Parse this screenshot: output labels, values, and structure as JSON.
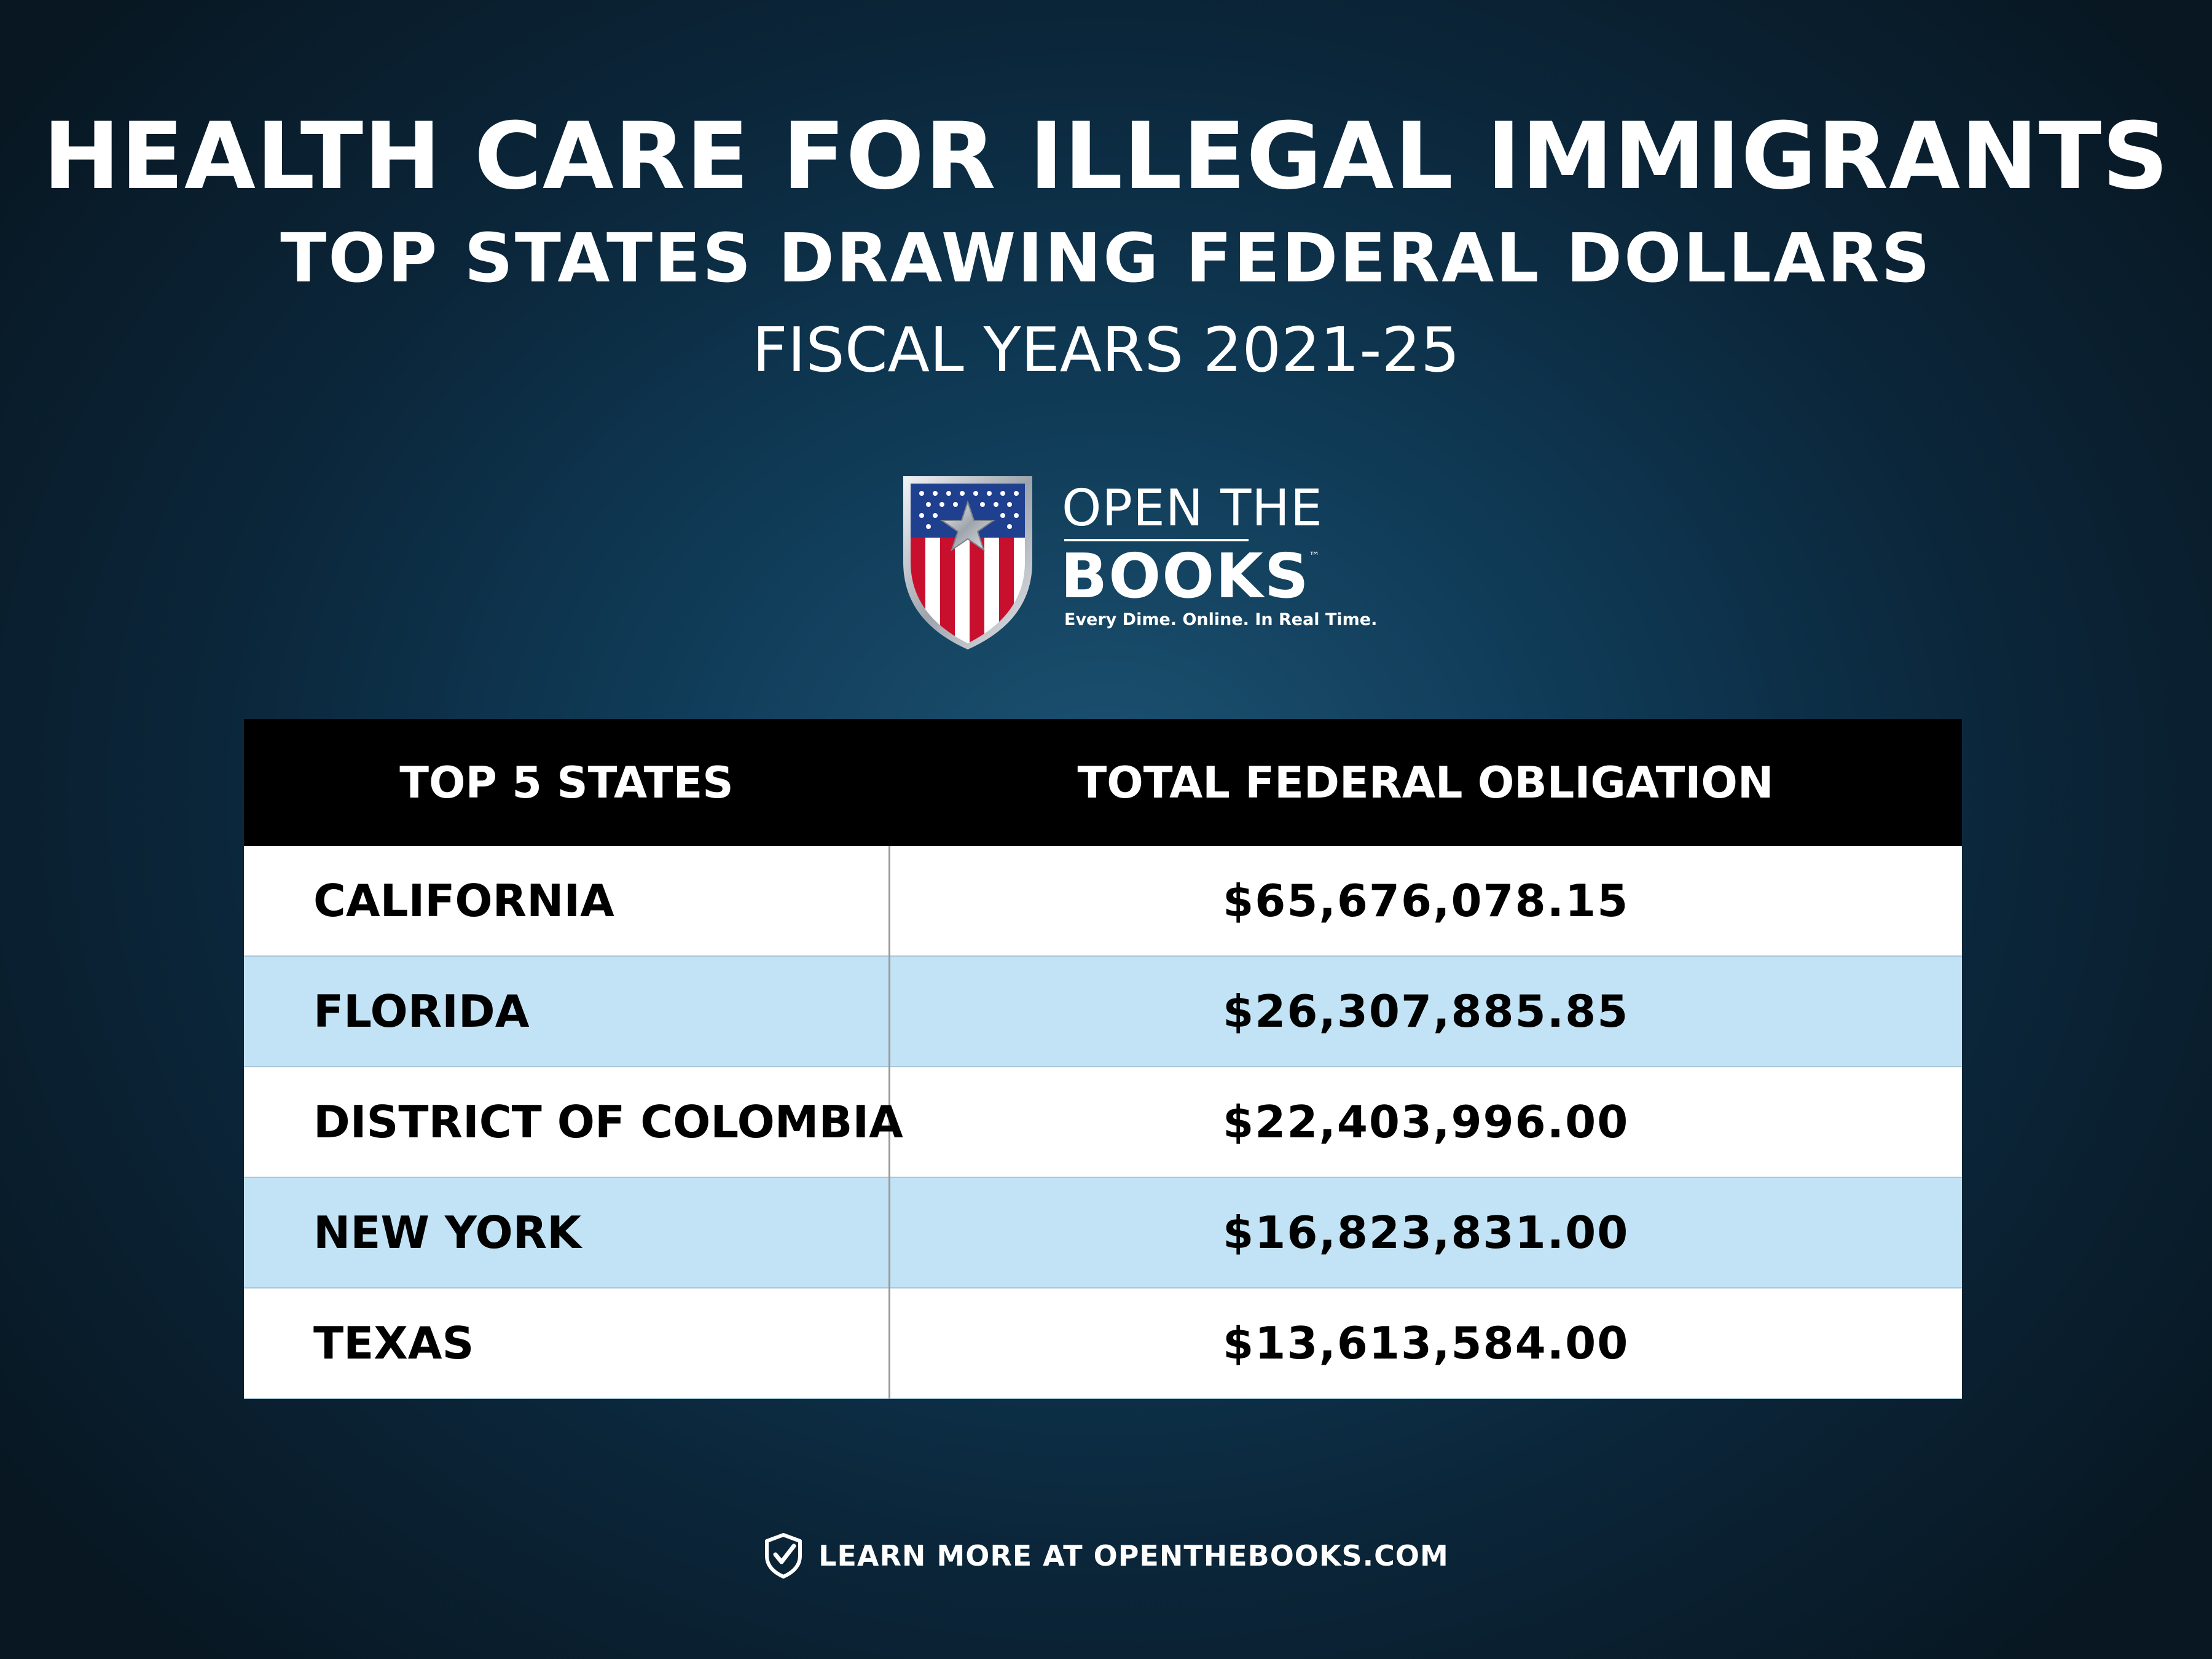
{
  "header": {
    "title": "HEALTH CARE FOR ILLEGAL IMMIGRANTS",
    "subtitle": "TOP STATES DRAWING FEDERAL DOLLARS",
    "period": "FISCAL YEARS 2021-25"
  },
  "logo": {
    "line1": "OPEN THE",
    "line2": "BOOKS",
    "trademark": "™",
    "tagline": "Every Dime. Online. In Real Time.",
    "colors": {
      "red": "#c8102e",
      "blue": "#1f3f8f",
      "silver": "#c9cdd3"
    }
  },
  "table": {
    "headers": [
      "TOP 5 STATES",
      "TOTAL FEDERAL OBLIGATION"
    ],
    "rows": [
      {
        "state": "CALIFORNIA",
        "amount": "$65,676,078.15"
      },
      {
        "state": "FLORIDA",
        "amount": "$26,307,885.85"
      },
      {
        "state": "DISTRICT OF COLOMBIA",
        "amount": "$22,403,996.00"
      },
      {
        "state": "NEW YORK",
        "amount": "$16,823,831.00"
      },
      {
        "state": "TEXAS",
        "amount": "$13,613,584.00"
      }
    ],
    "colors": {
      "header_bg": "#000000",
      "row_alt": "#c1e3f5",
      "row": "#ffffff"
    }
  },
  "footer": {
    "icon": "shield-check-icon",
    "text": "LEARN MORE AT OPENTHEBOOKS.COM"
  }
}
